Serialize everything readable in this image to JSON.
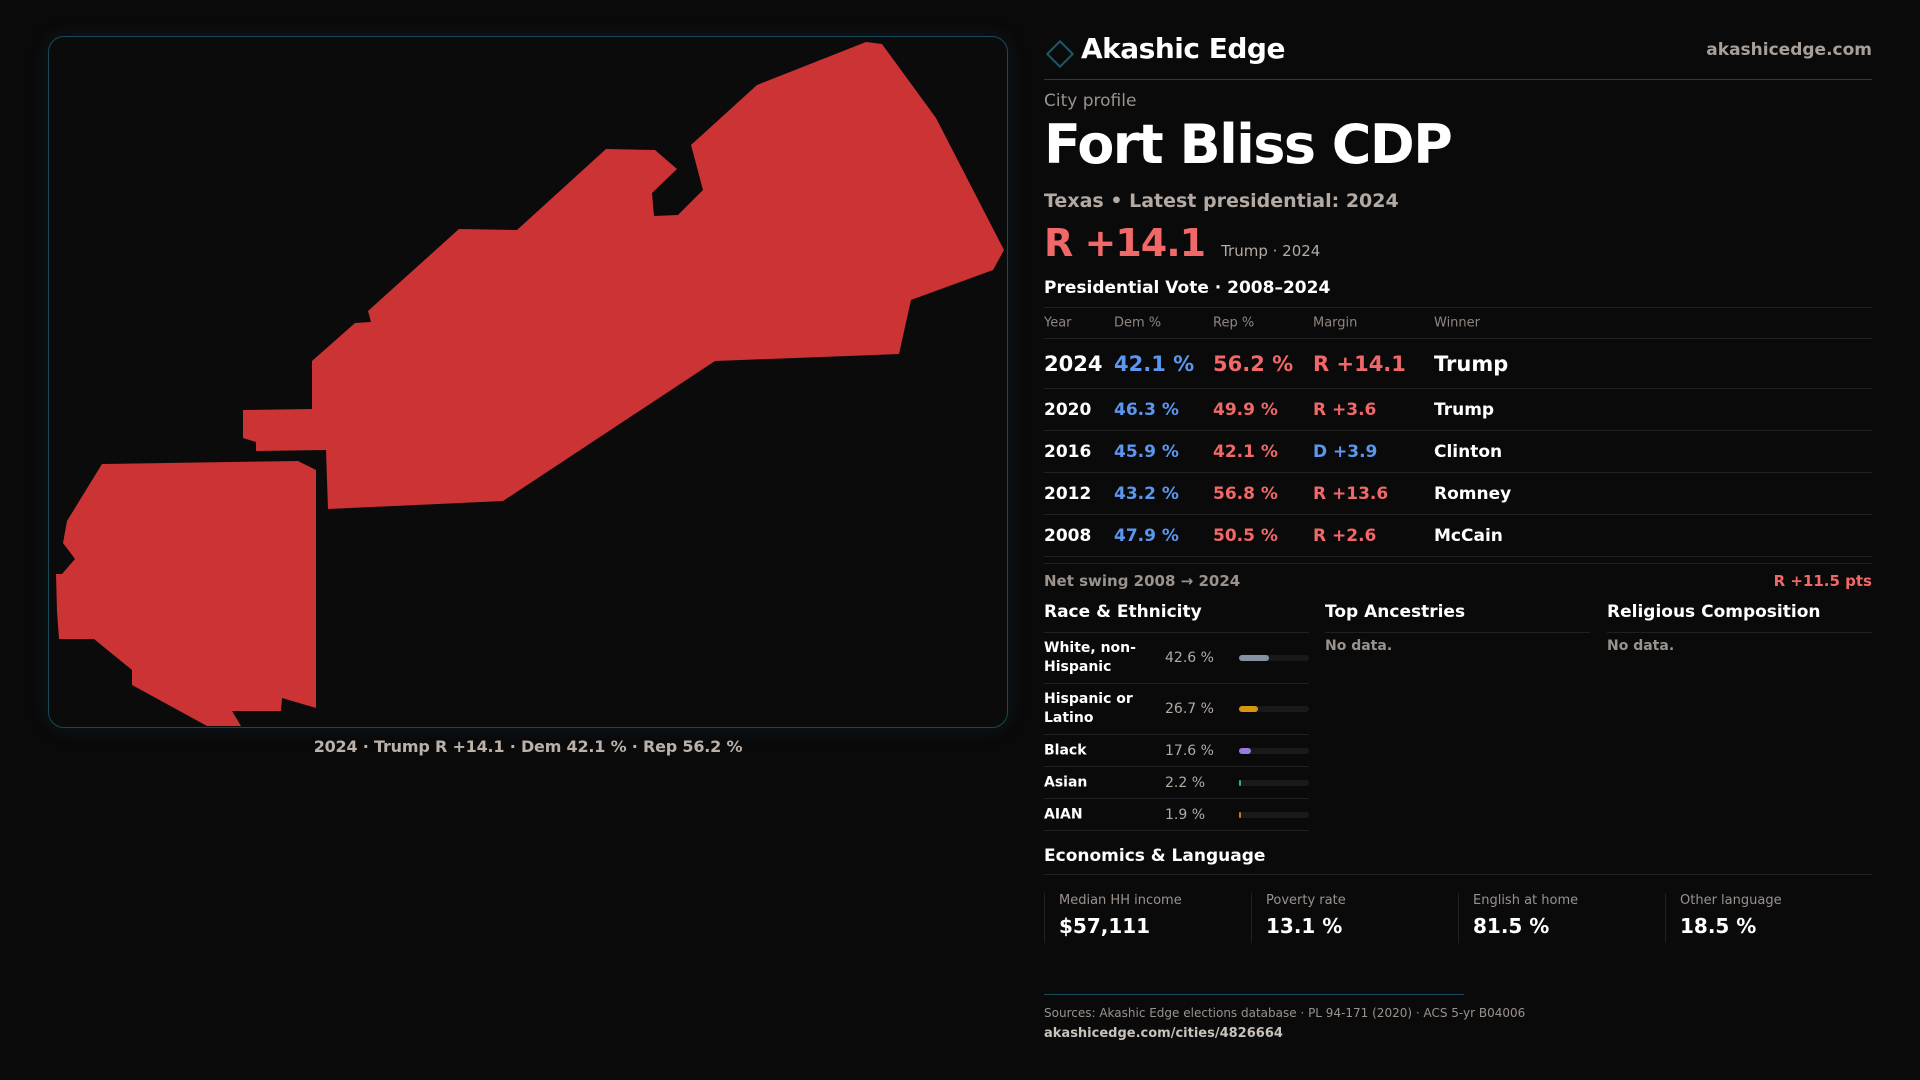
{
  "brand": {
    "name": "Akashic Edge",
    "url": "akashicedge.com",
    "icon": "diamond-outline-icon"
  },
  "colors": {
    "accent": "#1b5a68",
    "rep": "#f06868",
    "dem": "#5b97ef",
    "map_fill": "#cb3334"
  },
  "profile": {
    "kicker": "City profile",
    "title": "Fort Bliss CDP",
    "subtitle": "Texas • Latest presidential: 2024",
    "headline_margin": "R +14.1",
    "headline_meta": "Trump · 2024"
  },
  "map": {
    "caption": "2024 · Trump R +14.1 · Dem 42.1 % · Rep 56.2 %",
    "result": "Rep"
  },
  "votes": {
    "title": "Presidential Vote · 2008–2024",
    "headers": {
      "year": "Year",
      "dem": "Dem %",
      "rep": "Rep %",
      "margin": "Margin",
      "winner": "Winner"
    },
    "rows": [
      {
        "year": "2024",
        "dem": "42.1 %",
        "rep": "56.2 %",
        "margin": "R +14.1",
        "margin_party": "R",
        "winner": "Trump"
      },
      {
        "year": "2020",
        "dem": "46.3 %",
        "rep": "49.9 %",
        "margin": "R +3.6",
        "margin_party": "R",
        "winner": "Trump"
      },
      {
        "year": "2016",
        "dem": "45.9 %",
        "rep": "42.1 %",
        "margin": "D +3.9",
        "margin_party": "D",
        "winner": "Clinton"
      },
      {
        "year": "2012",
        "dem": "43.2 %",
        "rep": "56.8 %",
        "margin": "R +13.6",
        "margin_party": "R",
        "winner": "Romney"
      },
      {
        "year": "2008",
        "dem": "47.9 %",
        "rep": "50.5 %",
        "margin": "R +2.6",
        "margin_party": "R",
        "winner": "McCain"
      }
    ],
    "swing_label": "Net swing 2008 → 2024",
    "swing_value": "R +11.5 pts"
  },
  "race": {
    "title": "Race & Ethnicity",
    "items": [
      {
        "name": "White, non-Hispanic",
        "pct": "42.6 %",
        "value": 42.6,
        "color": "#8791a3"
      },
      {
        "name": "Hispanic or Latino",
        "pct": "26.7 %",
        "value": 26.7,
        "color": "#d99411"
      },
      {
        "name": "Black",
        "pct": "17.6 %",
        "value": 17.6,
        "color": "#9b7ae0"
      },
      {
        "name": "Asian",
        "pct": "2.2 %",
        "value": 2.2,
        "color": "#2bb58a"
      },
      {
        "name": "AIAN",
        "pct": "1.9 %",
        "value": 1.9,
        "color": "#d2781a"
      }
    ]
  },
  "ancestries": {
    "title": "Top Ancestries",
    "empty": "No data."
  },
  "religion": {
    "title": "Religious Composition",
    "empty": "No data."
  },
  "economics": {
    "title": "Economics & Language",
    "items": [
      {
        "label": "Median HH income",
        "value": "$57,111"
      },
      {
        "label": "Poverty rate",
        "value": "13.1 %"
      },
      {
        "label": "English at home",
        "value": "81.5 %"
      },
      {
        "label": "Other language",
        "value": "18.5 %"
      }
    ]
  },
  "footer": {
    "sources": "Sources: Akashic Edge elections database · PL 94-171 (2020) · ACS 5-yr B04006",
    "url": "akashicedge.com/cities/4826664"
  }
}
